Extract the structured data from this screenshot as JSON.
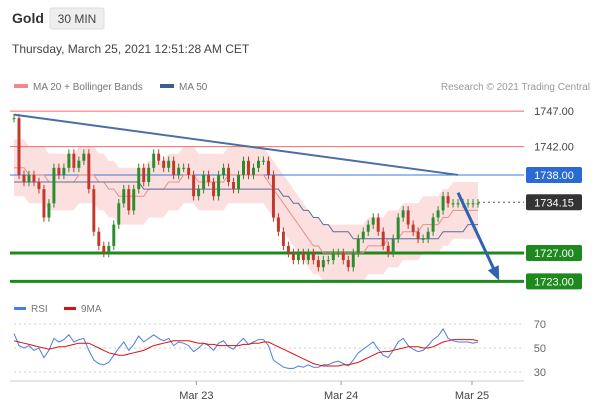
{
  "header": {
    "symbol": "Gold",
    "timeframe": "30 MIN",
    "timestamp": "Thursday, March 25, 2021 12:51:28 AM CET"
  },
  "legend": {
    "ma20_bb": "MA 20 + Bollinger Bands",
    "ma50": "MA 50",
    "copyright": "Research © 2021 Trading Central"
  },
  "colors": {
    "resistance": "#f26b6b",
    "support": "#1e8a1e",
    "current_line": "#3a78d8",
    "trend": "#4a6fa5",
    "ma50": "#5a6d9a",
    "ma20": "#e88f8f",
    "bb_fill": "#fbd9d9",
    "candle_up": "#2e8b2e",
    "candle_down": "#c0392b",
    "rsi": "#4a7ee0",
    "rsi_ma": "#e01010",
    "price_tag_current": "#2a6ad3",
    "price_tag_last": "#333333"
  },
  "chart_data": [
    {
      "type": "candlestick",
      "title": "",
      "x_ticks": [
        "Mar 23",
        "Mar 24",
        "Mar 25"
      ],
      "ylim": [
        1721.5,
        1748.0
      ],
      "price_levels": [
        {
          "label": "1747.00",
          "value": 1747.0,
          "kind": "resistance"
        },
        {
          "label": "1742.00",
          "value": 1742.0,
          "kind": "resistance"
        },
        {
          "label": "1738.00",
          "value": 1738.0,
          "kind": "current"
        },
        {
          "label": "1734.15",
          "value": 1734.15,
          "kind": "last"
        },
        {
          "label": "1727.00",
          "value": 1727.0,
          "kind": "support"
        },
        {
          "label": "1723.00",
          "value": 1723.0,
          "kind": "support"
        }
      ],
      "trendline": [
        [
          0,
          1746.5
        ],
        [
          89,
          1738.0
        ]
      ],
      "projection": [
        [
          89,
          1735.5
        ],
        [
          97,
          1723.5
        ]
      ],
      "close": [
        1746,
        1738,
        1737,
        1738,
        1737,
        1736,
        1732,
        1734,
        1739,
        1738,
        1739,
        1741,
        1739,
        1740,
        1741,
        1736,
        1730,
        1728,
        1727,
        1728,
        1731,
        1734,
        1736,
        1733,
        1736,
        1739,
        1737,
        1739,
        1741,
        1740,
        1739,
        1740,
        1738,
        1739,
        1739,
        1738,
        1735,
        1736,
        1738,
        1737,
        1735,
        1738,
        1739,
        1737,
        1736,
        1738,
        1740,
        1738,
        1739,
        1740,
        1740,
        1738,
        1732,
        1730,
        1728,
        1727,
        1726,
        1727,
        1726,
        1727,
        1726,
        1725,
        1726,
        1726,
        1727,
        1727,
        1726,
        1725,
        1727,
        1729,
        1730,
        1731,
        1732,
        1730,
        1728,
        1727,
        1729,
        1732,
        1733,
        1731,
        1730,
        1729,
        1729,
        1730,
        1732,
        1733,
        1735,
        1734,
        1734,
        1734,
        1734,
        1734,
        1734,
        1734
      ],
      "ma20": [
        1739,
        1739,
        1739,
        1738,
        1738,
        1738,
        1738,
        1737,
        1737,
        1737,
        1737,
        1737,
        1737,
        1738,
        1738,
        1738,
        1738,
        1737,
        1737,
        1736,
        1736,
        1735,
        1735,
        1735,
        1735,
        1735,
        1735,
        1736,
        1736,
        1736,
        1736,
        1737,
        1737,
        1737,
        1738,
        1738,
        1738,
        1737,
        1737,
        1737,
        1737,
        1737,
        1737,
        1738,
        1738,
        1738,
        1738,
        1738,
        1738,
        1738,
        1738,
        1737,
        1736,
        1735,
        1734,
        1733,
        1732,
        1731,
        1730,
        1729,
        1728,
        1728,
        1727,
        1727,
        1727,
        1727,
        1727,
        1727,
        1727,
        1727,
        1727,
        1728,
        1728,
        1728,
        1728,
        1729,
        1729,
        1729,
        1730,
        1730,
        1730,
        1730,
        1731,
        1731,
        1731,
        1731,
        1732,
        1732,
        1733,
        1733,
        1733,
        1733,
        1733,
        1733
      ],
      "ma50": [
        1737,
        1737,
        1737,
        1737,
        1737,
        1737,
        1737,
        1737,
        1737,
        1737,
        1737,
        1737,
        1737,
        1737,
        1737,
        1737,
        1737,
        1737,
        1737,
        1737,
        1737,
        1737,
        1737,
        1737,
        1737,
        1737,
        1736,
        1736,
        1736,
        1736,
        1736,
        1736,
        1736,
        1736,
        1736,
        1736,
        1736,
        1736,
        1736,
        1736,
        1736,
        1736,
        1736,
        1736,
        1736,
        1736,
        1736,
        1736,
        1736,
        1736,
        1736,
        1736,
        1736,
        1736,
        1735,
        1735,
        1734,
        1734,
        1733,
        1733,
        1732,
        1732,
        1731,
        1731,
        1730,
        1730,
        1730,
        1730,
        1729,
        1729,
        1729,
        1729,
        1729,
        1729,
        1729,
        1729,
        1729,
        1729,
        1729,
        1729,
        1729,
        1729,
        1729,
        1729,
        1729,
        1729,
        1730,
        1730,
        1730,
        1730,
        1730,
        1731,
        1731,
        1731
      ],
      "bb_width": 4
    },
    {
      "type": "line",
      "title": "",
      "series": [
        {
          "name": "RSI",
          "values": [
            62,
            52,
            50,
            52,
            48,
            50,
            42,
            48,
            58,
            55,
            57,
            61,
            55,
            57,
            58,
            48,
            40,
            37,
            36,
            38,
            44,
            50,
            55,
            48,
            53,
            60,
            55,
            58,
            61,
            58,
            56,
            58,
            52,
            55,
            54,
            52,
            47,
            50,
            54,
            52,
            48,
            54,
            56,
            51,
            49,
            54,
            58,
            53,
            55,
            57,
            57,
            52,
            40,
            37,
            34,
            33,
            33,
            35,
            34,
            36,
            34,
            34,
            36,
            36,
            38,
            39,
            37,
            35,
            40,
            46,
            49,
            52,
            55,
            49,
            44,
            42,
            48,
            55,
            58,
            52,
            49,
            47,
            48,
            52,
            57,
            60,
            66,
            58,
            56,
            55,
            55,
            55,
            54,
            55
          ]
        },
        {
          "name": "9MA",
          "values": [
            56,
            55,
            54,
            53,
            52,
            51,
            50,
            49,
            50,
            51,
            51,
            52,
            53,
            54,
            54,
            54,
            52,
            50,
            48,
            46,
            45,
            44,
            44,
            45,
            46,
            47,
            48,
            50,
            52,
            53,
            54,
            55,
            56,
            56,
            56,
            56,
            55,
            54,
            54,
            53,
            53,
            52,
            52,
            52,
            52,
            52,
            53,
            53,
            54,
            54,
            55,
            55,
            53,
            51,
            49,
            47,
            45,
            43,
            41,
            39,
            37,
            36,
            35,
            35,
            35,
            35,
            36,
            36,
            37,
            38,
            40,
            42,
            44,
            46,
            47,
            47,
            48,
            49,
            50,
            51,
            51,
            51,
            50,
            50,
            51,
            53,
            55,
            56,
            57,
            57,
            57,
            57,
            57,
            56
          ]
        }
      ],
      "ylim": [
        25,
        75
      ],
      "y_ticks": [
        "70",
        "50",
        "30"
      ]
    }
  ],
  "rsi_legend": {
    "rsi": "RSI",
    "ma": "9MA"
  }
}
